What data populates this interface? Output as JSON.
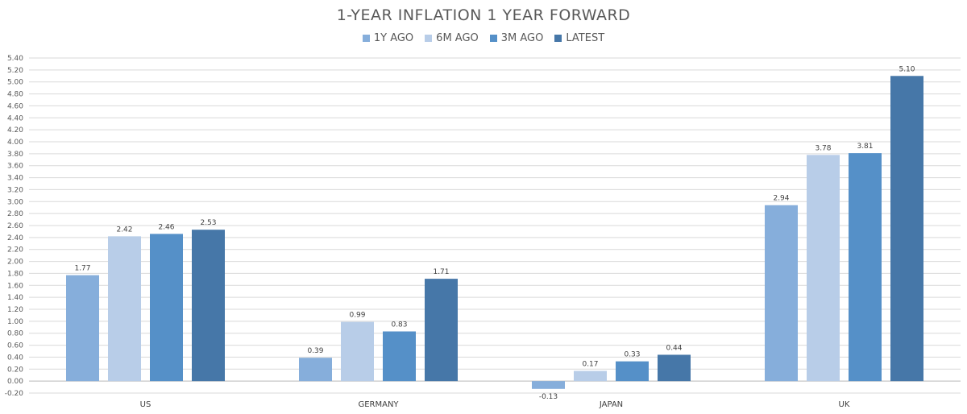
{
  "chart_data": {
    "type": "bar",
    "title": "1-YEAR INFLATION 1 YEAR FORWARD",
    "categories": [
      "US",
      "GERMANY",
      "JAPAN",
      "UK"
    ],
    "series": [
      {
        "name": "1Y AGO",
        "color": "#86aedb",
        "values": [
          1.77,
          0.39,
          -0.13,
          2.94
        ]
      },
      {
        "name": "6M AGO",
        "color": "#b8cde8",
        "values": [
          2.42,
          0.99,
          0.17,
          3.78
        ]
      },
      {
        "name": "3M AGO",
        "color": "#5590c8",
        "values": [
          2.46,
          0.83,
          0.33,
          3.81
        ]
      },
      {
        "name": "LATEST",
        "color": "#4677a8",
        "values": [
          2.53,
          1.71,
          0.44,
          5.1
        ]
      }
    ],
    "data_labels": [
      [
        "1.77",
        "0.39",
        "-0.13",
        "2.94"
      ],
      [
        "2.42",
        "0.99",
        "0.17",
        "3.78"
      ],
      [
        "2.46",
        "0.83",
        "0.33",
        "3.81"
      ],
      [
        "2.53",
        "1.71",
        "0.44",
        "5.10"
      ]
    ],
    "ylim": [
      -0.2,
      5.4
    ],
    "ytick_step": 0.2,
    "grid": true,
    "legend": "top-center",
    "xlabel": "",
    "ylabel": ""
  }
}
